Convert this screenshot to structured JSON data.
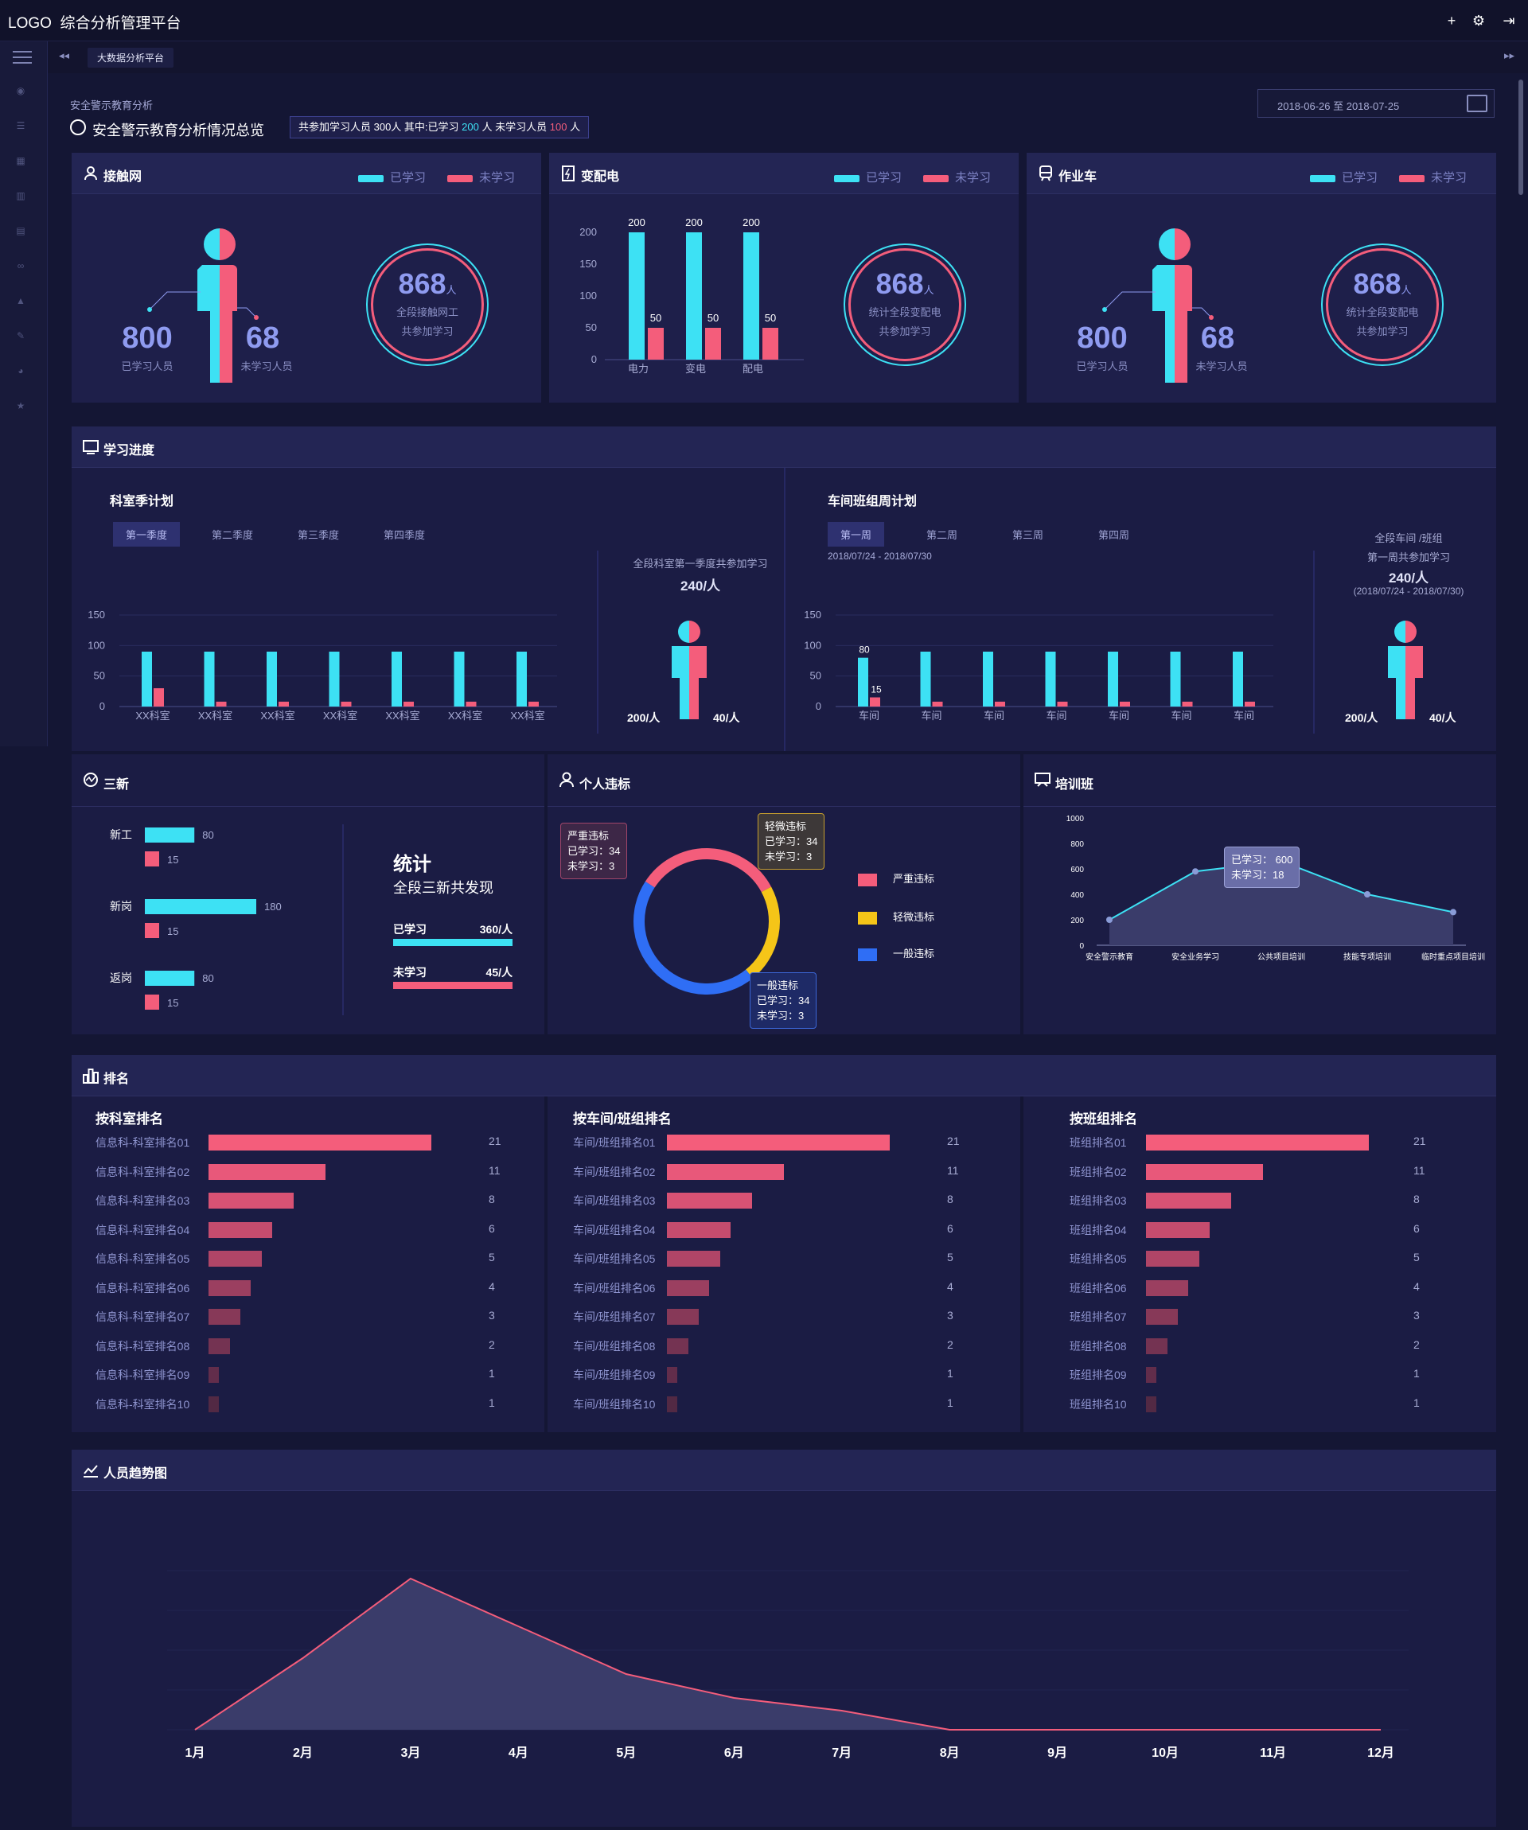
{
  "app": {
    "logo": "LOGO",
    "title": "综合分析管理平台"
  },
  "tabbar": {
    "tab": "大数据分析平台"
  },
  "breadcrumb": "安全警示教育分析",
  "page_title": "安全警示教育分析情况总览",
  "summary": {
    "prefix": "共参加学习人员 300人 其中:已学习",
    "learned": "200",
    "mid": "人 未学习人员",
    "unlearned": "100",
    "suffix": "人"
  },
  "date_range": "2018-06-26 至 2018-07-25",
  "legend": {
    "learned": "已学习",
    "unlearned": "未学习"
  },
  "colors": {
    "cyan": "#3de1f4",
    "pink": "#f45d7b",
    "yellow": "#f5c518",
    "blue": "#2f6ef5",
    "bg": "#141634"
  },
  "card1": {
    "title": "接触网",
    "learned_num": "800",
    "learned_cap": "已学习人员",
    "unlearned_num": "68",
    "unlearned_cap": "未学习人员",
    "total": "868",
    "unit": "人",
    "line1": "全段接触网工",
    "line2": "共参加学习"
  },
  "card2": {
    "title": "变配电",
    "total": "868",
    "unit": "人",
    "line1": "统计全段变配电",
    "line2": "共参加学习"
  },
  "card3": {
    "title": "作业车",
    "learned_num": "800",
    "learned_cap": "已学习人员",
    "unlearned_num": "68",
    "unlearned_cap": "未学习人员",
    "total": "868",
    "unit": "人",
    "line1": "统计全段变配电",
    "line2": "共参加学习"
  },
  "progress": {
    "title": "学习进度",
    "left": {
      "title": "科室季计划",
      "tabs": [
        "第一季度",
        "第二季度",
        "第三季度",
        "第四季度"
      ],
      "side_title": "全段科室第一季度共参加学习",
      "side_total": "240/人",
      "side_learned": "200/人",
      "side_unlearned": "40/人"
    },
    "right": {
      "title": "车间班组周计划",
      "tabs": [
        "第一周",
        "第二周",
        "第三周",
        "第四周"
      ],
      "date": "2018/07/24 - 2018/07/30",
      "side_title1": "全段车间 /班组",
      "side_title2": "第一周共参加学习",
      "side_total": "240/人",
      "side_date": "(2018/07/24 - 2018/07/30)",
      "side_learned": "200/人",
      "side_unlearned": "40/人"
    }
  },
  "sanxin": {
    "title": "三新",
    "stat_title": "统计",
    "stat_sub": "全段三新共发现",
    "learned_label": "已学习",
    "learned_val": "360/人",
    "unlearned_label": "未学习",
    "unlearned_val": "45/人"
  },
  "violation": {
    "title": "个人违标",
    "legend": [
      "严重违标",
      "轻微违标",
      "一般违标"
    ],
    "tip_serious": {
      "title": "严重违标",
      "l1": "已学习：34",
      "l2": "未学习：3"
    },
    "tip_minor": {
      "title": "轻微违标",
      "l1": "已学习：34",
      "l2": "未学习：3"
    },
    "tip_general": {
      "title": "一般违标",
      "l1": "已学习：34",
      "l2": "未学习：3"
    }
  },
  "training": {
    "title": "培训班",
    "tip_l1": "已学习：  600",
    "tip_l2": "未学习：18"
  },
  "ranking": {
    "title": "排名",
    "col1_title": "按科室排名",
    "col2_title": "按车间/班组排名",
    "col3_title": "按班组排名"
  },
  "trend": {
    "title": "人员趋势图"
  },
  "chart_data": [
    {
      "type": "bar",
      "title": "变配电",
      "categories": [
        "电力",
        "变电",
        "配电"
      ],
      "ylim": [
        0,
        200
      ],
      "yticks": [
        0,
        50,
        100,
        150,
        200
      ],
      "series": [
        {
          "name": "已学习",
          "values": [
            200,
            200,
            200
          ]
        },
        {
          "name": "未学习",
          "values": [
            50,
            50,
            50
          ]
        }
      ]
    },
    {
      "type": "bar",
      "title": "科室季计划",
      "categories": [
        "XX科室",
        "XX科室",
        "XX科室",
        "XX科室",
        "XX科室",
        "XX科室",
        "XX科室"
      ],
      "ylim": [
        0,
        150
      ],
      "yticks": [
        0,
        50,
        100,
        150
      ],
      "series": [
        {
          "name": "已学习",
          "values": [
            90,
            90,
            90,
            90,
            90,
            90,
            90
          ]
        },
        {
          "name": "未学习",
          "values": [
            30,
            8,
            8,
            8,
            8,
            8,
            8
          ]
        }
      ]
    },
    {
      "type": "bar",
      "title": "车间班组周计划",
      "categories": [
        "车间",
        "车间",
        "车间",
        "车间",
        "车间",
        "车间",
        "车间"
      ],
      "ylim": [
        0,
        150
      ],
      "yticks": [
        0,
        50,
        100,
        150
      ],
      "series": [
        {
          "name": "已学习",
          "values": [
            80,
            90,
            90,
            90,
            90,
            90,
            90
          ]
        },
        {
          "name": "未学习",
          "values": [
            15,
            8,
            8,
            8,
            8,
            8,
            8
          ]
        }
      ],
      "labels": [
        "80",
        "15"
      ]
    },
    {
      "type": "bar",
      "title": "三新",
      "orientation": "horizontal",
      "categories": [
        "新工",
        "新岗",
        "返岗"
      ],
      "series": [
        {
          "name": "已学习",
          "values": [
            80,
            180,
            80
          ]
        },
        {
          "name": "未学习",
          "values": [
            15,
            15,
            15
          ]
        }
      ]
    },
    {
      "type": "pie",
      "title": "个人违标",
      "labels": [
        "严重违标",
        "轻微违标",
        "一般违标"
      ],
      "values": [
        33,
        22,
        45
      ]
    },
    {
      "type": "area",
      "title": "培训班",
      "categories": [
        "安全警示教育",
        "安全业务学习",
        "公共项目培训",
        "技能专项培训",
        "临时重点项目培训"
      ],
      "values": [
        200,
        580,
        660,
        400,
        260
      ],
      "ylim": [
        0,
        1000
      ],
      "yticks": [
        0,
        200,
        400,
        600,
        800,
        1000
      ]
    },
    {
      "type": "bar",
      "title": "按科室排名",
      "orientation": "horizontal",
      "categories": [
        "信息科-科室排名01",
        "信息科-科室排名02",
        "信息科-科室排名03",
        "信息科-科室排名04",
        "信息科-科室排名05",
        "信息科-科室排名06",
        "信息科-科室排名07",
        "信息科-科室排名08",
        "信息科-科室排名09",
        "信息科-科室排名10"
      ],
      "values": [
        21,
        11,
        8,
        6,
        5,
        4,
        3,
        2,
        1,
        1
      ]
    },
    {
      "type": "bar",
      "title": "按车间/班组排名",
      "orientation": "horizontal",
      "categories": [
        "车间/班组排名01",
        "车间/班组排名02",
        "车间/班组排名03",
        "车间/班组排名04",
        "车间/班组排名05",
        "车间/班组排名06",
        "车间/班组排名07",
        "车间/班组排名08",
        "车间/班组排名09",
        "车间/班组排名10"
      ],
      "values": [
        21,
        11,
        8,
        6,
        5,
        4,
        3,
        2,
        1,
        1
      ]
    },
    {
      "type": "bar",
      "title": "按班组排名",
      "orientation": "horizontal",
      "categories": [
        "班组排名01",
        "班组排名02",
        "班组排名03",
        "班组排名04",
        "班组排名05",
        "班组排名06",
        "班组排名07",
        "班组排名08",
        "班组排名09",
        "班组排名10"
      ],
      "values": [
        21,
        11,
        8,
        6,
        5,
        4,
        3,
        2,
        1,
        1
      ]
    },
    {
      "type": "area",
      "title": "人员趋势图",
      "categories": [
        "1月",
        "2月",
        "3月",
        "4月",
        "5月",
        "6月",
        "7月",
        "8月",
        "9月",
        "10月",
        "11月",
        "12月"
      ],
      "values": [
        0,
        45,
        95,
        65,
        35,
        20,
        12,
        0,
        0,
        0,
        0,
        0
      ],
      "ylim": [
        0,
        100
      ]
    }
  ]
}
